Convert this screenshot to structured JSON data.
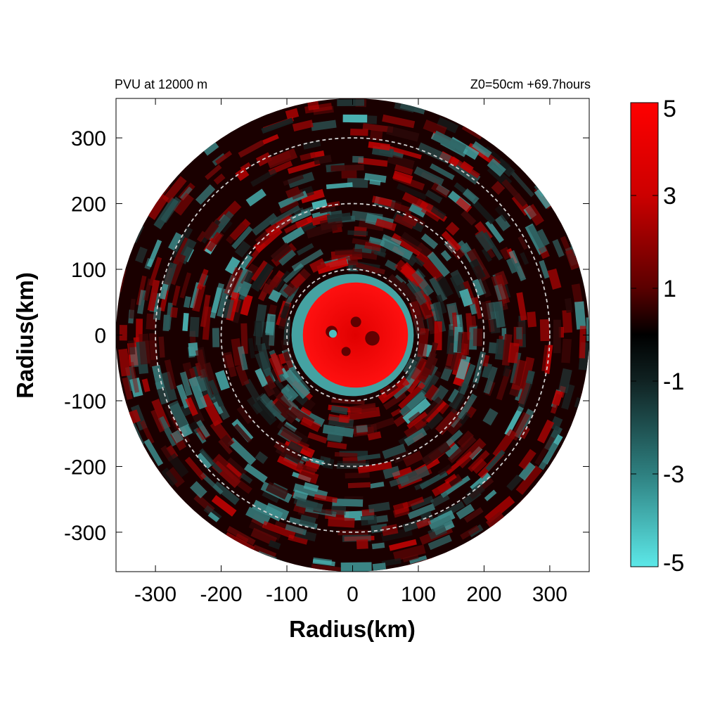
{
  "chart_data": {
    "type": "heatmap",
    "title_left": "PVU at 12000 m",
    "title_right": "Z0=50cm  +69.7hours",
    "xlabel": "Radius(km)",
    "ylabel": "Radius(km)",
    "xlim": [
      -360,
      360
    ],
    "ylim": [
      -360,
      360
    ],
    "x_ticks": [
      -300,
      -200,
      -100,
      0,
      100,
      200,
      300
    ],
    "y_ticks": [
      300,
      200,
      100,
      0,
      -100,
      -200,
      -300
    ],
    "x_tick_labels": [
      "-300",
      "-200",
      "-100",
      "0",
      "100",
      "200",
      "300"
    ],
    "y_tick_labels": [
      "300",
      "200",
      "100",
      "0",
      "-100",
      "-200",
      "-300"
    ],
    "domain_radius_km": 360,
    "reference_circles_km": [
      100,
      200,
      300
    ],
    "colorbar": {
      "min": -5,
      "max": 5,
      "ticks": [
        5,
        3,
        1,
        -1,
        -3,
        -5
      ],
      "tick_labels": [
        "5",
        "3",
        "1",
        "-1",
        "-3",
        "-5"
      ],
      "colors": {
        "low": "#5ce8e8",
        "mid": "#000000",
        "high": "#ff0000"
      }
    },
    "field_description": [
      {
        "region": "core",
        "radius_km": [
          0,
          80
        ],
        "value": 5
      },
      {
        "region": "eyewall-edge",
        "radius_km": [
          80,
          100
        ],
        "value": -4
      },
      {
        "region": "outer",
        "radius_km": [
          100,
          360
        ],
        "value_range": [
          -4,
          4
        ]
      }
    ]
  }
}
